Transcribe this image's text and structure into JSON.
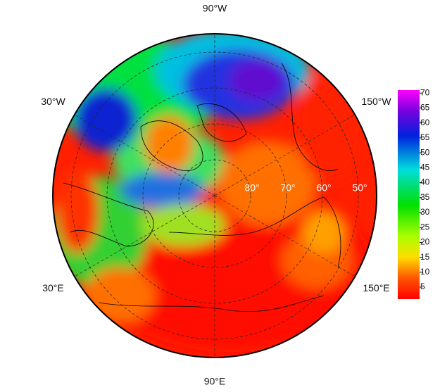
{
  "map": {
    "longitude_labels": [
      {
        "value": -90,
        "label": "90°W"
      },
      {
        "value": -30,
        "label": "30°W"
      },
      {
        "value": -150,
        "label": "150°W"
      },
      {
        "value": 30,
        "label": "30°E"
      },
      {
        "value": 150,
        "label": "150°E"
      },
      {
        "value": 90,
        "label": "90°E"
      }
    ],
    "latitude_labels": [
      {
        "value": 80,
        "label": "80°"
      },
      {
        "value": 70,
        "label": "70°"
      },
      {
        "value": 60,
        "label": "60°"
      },
      {
        "value": 50,
        "label": "50°"
      }
    ],
    "colorbar": {
      "clim": [
        1,
        71
      ],
      "ticks": [
        5,
        10,
        15,
        20,
        25,
        30,
        35,
        40,
        45,
        50,
        55,
        60,
        65,
        70
      ]
    }
  }
}
